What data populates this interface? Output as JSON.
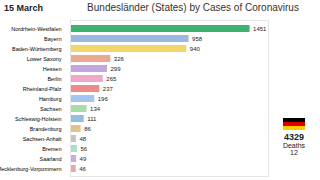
{
  "chart_data": {
    "type": "bar",
    "orientation": "horizontal",
    "title": "Bundesländer (States) by Cases of Coronavirus",
    "subtitle": "15 March",
    "categories": [
      "Nordrhein-Westfalen",
      "Bayern",
      "Baden-Württemberg",
      "Lower Saxony",
      "Hessen",
      "Berlin",
      "Rheinland-Pfalz",
      "Hamburg",
      "Sachsen",
      "Schleswig-Holstein",
      "Brandenburg",
      "Sachsen-Anhalt",
      "Bremen",
      "Saarland",
      "Mecklenburg-Vorpommern"
    ],
    "values": [
      1451,
      958,
      940,
      326,
      299,
      265,
      237,
      196,
      134,
      111,
      86,
      48,
      56,
      49,
      46
    ],
    "colors": [
      "#3cb371",
      "#9ab8e0",
      "#f2d66b",
      "#e8a98f",
      "#c3a6e0",
      "#f0a8c8",
      "#ef8a8a",
      "#a6c4f0",
      "#a8dca8",
      "#8fc0e0",
      "#e0c487",
      "#c4c4c4",
      "#a6e0c8",
      "#d2a8e0",
      "#e6a8a8"
    ],
    "xlim": [
      0,
      1600
    ],
    "data_labels": true,
    "tick_labels": "y",
    "annotations": [
      "4329",
      "Deaths",
      "12"
    ]
  }
}
